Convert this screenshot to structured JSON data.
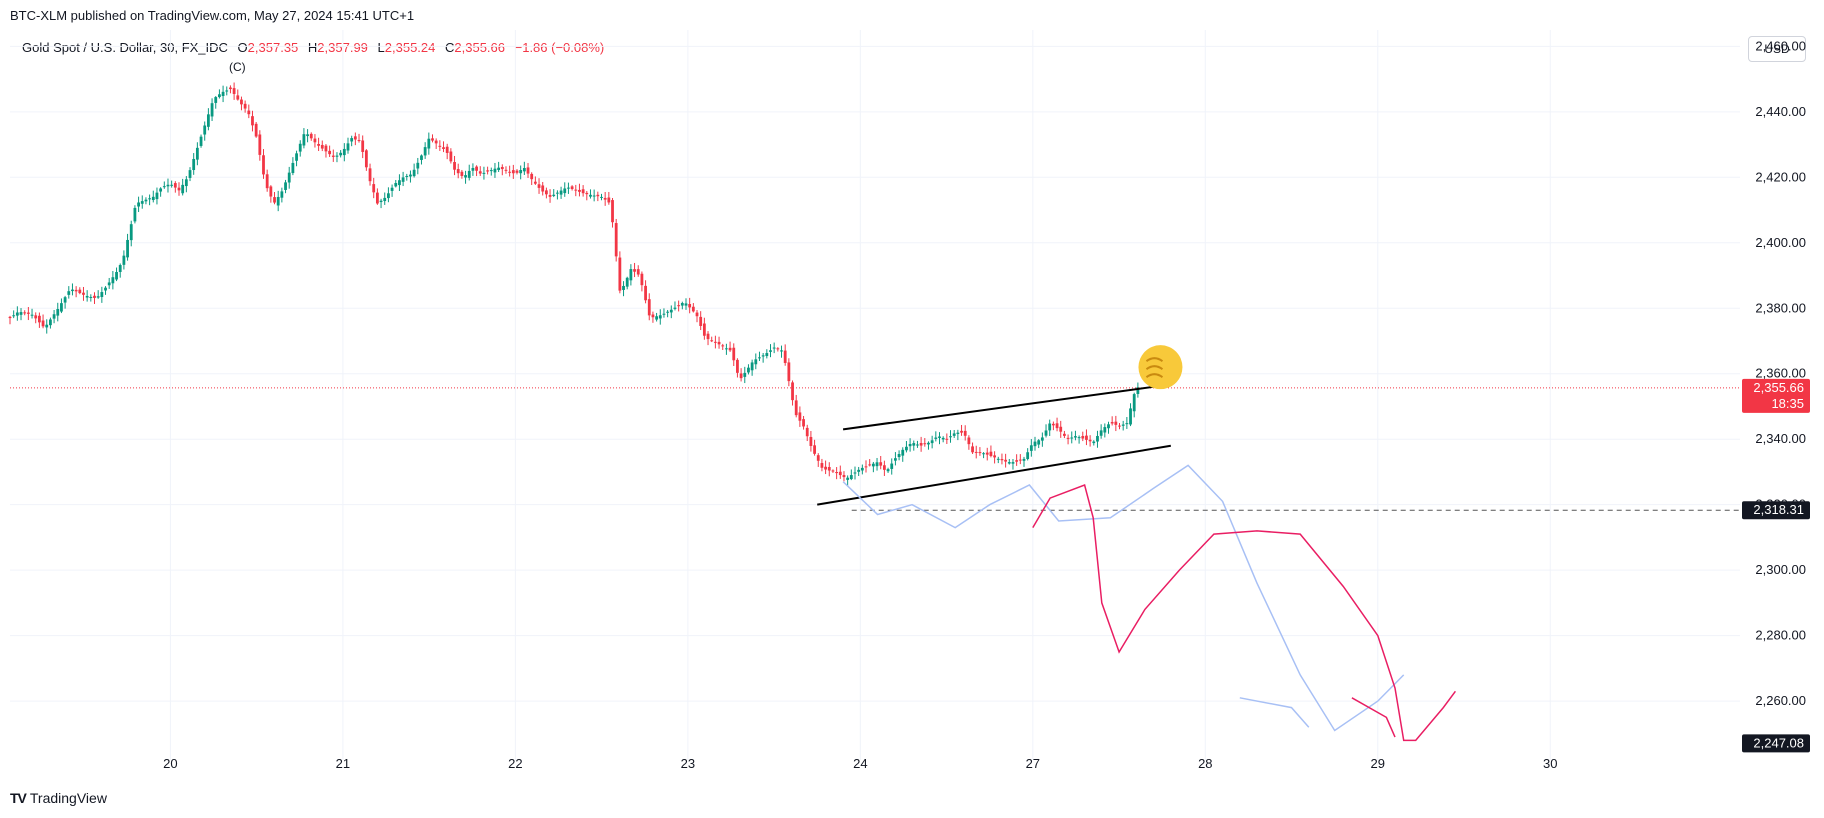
{
  "header": {
    "published": "BTC-XLM published on TradingView.com, May 27, 2024 15:41 UTC+1"
  },
  "legend": {
    "symbol": "Gold Spot / U.S. Dollar, 30, FX_IDC",
    "o_label": "O",
    "o_value": "2,357.35",
    "h_label": "H",
    "h_value": "2,357.99",
    "l_label": "L",
    "l_value": "2,355.24",
    "c_label": "C",
    "c_value": "2,355.66",
    "change": "−1.86 (−0.08%)"
  },
  "wave_label": "(C)",
  "currency_button": "USD",
  "footer": {
    "brand": "TradingView",
    "logo": "TV"
  },
  "colors": {
    "up": "#089981",
    "down": "#f23645",
    "grid": "#f0f3fa",
    "current_price_line": "#f23645",
    "channel": "#000000",
    "projection_blue": "#a8c0f5",
    "projection_pink": "#e91e63"
  },
  "price_tags": {
    "current": "2,355.66",
    "countdown": "18:35",
    "level": "2,318.31",
    "low_target": "2,247.08"
  },
  "icons": {
    "fist": "fist-emoji-icon"
  },
  "chart_data": {
    "type": "candlestick",
    "title": "",
    "y_ticks": [
      2260,
      2280,
      2300,
      2320,
      2340,
      2360,
      2380,
      2400,
      2420,
      2440,
      2460
    ],
    "y_tick_labels": [
      "2,260.00",
      "2,280.00",
      "2,300.00",
      "2,320.00",
      "2,340.00",
      "2,360.00",
      "2,380.00",
      "2,400.00",
      "2,420.00",
      "2,440.00",
      "2,460.00"
    ],
    "ylim": [
      2242.0,
      2465.0
    ],
    "x_ticks": [
      "20",
      "21",
      "22",
      "23",
      "24",
      "27",
      "28",
      "29",
      "30"
    ],
    "x_tick_day": [
      1,
      2,
      3,
      4,
      5,
      6,
      7,
      8,
      9
    ],
    "xlim": [
      0.07,
      10.1
    ],
    "series": [
      {
        "name": "Gold Spot / U.S. Dollar",
        "close_path": [
          [
            0.07,
            2377
          ],
          [
            0.12,
            2379
          ],
          [
            0.2,
            2378
          ],
          [
            0.27,
            2374
          ],
          [
            0.35,
            2380
          ],
          [
            0.42,
            2386
          ],
          [
            0.5,
            2384
          ],
          [
            0.57,
            2383
          ],
          [
            0.62,
            2386
          ],
          [
            0.7,
            2392
          ],
          [
            0.73,
            2396
          ],
          [
            0.77,
            2405
          ],
          [
            0.8,
            2412
          ],
          [
            0.85,
            2413
          ],
          [
            0.9,
            2414
          ],
          [
            0.95,
            2417
          ],
          [
            1.0,
            2418
          ],
          [
            1.05,
            2416
          ],
          [
            1.1,
            2420
          ],
          [
            1.15,
            2428
          ],
          [
            1.2,
            2436
          ],
          [
            1.25,
            2444
          ],
          [
            1.3,
            2446
          ],
          [
            1.35,
            2447
          ],
          [
            1.4,
            2443
          ],
          [
            1.45,
            2440
          ],
          [
            1.5,
            2432
          ],
          [
            1.55,
            2418
          ],
          [
            1.6,
            2412
          ],
          [
            1.65,
            2416
          ],
          [
            1.7,
            2423
          ],
          [
            1.78,
            2434
          ],
          [
            1.85,
            2430
          ],
          [
            1.9,
            2428
          ],
          [
            1.95,
            2426
          ],
          [
            2.0,
            2428
          ],
          [
            2.05,
            2432
          ],
          [
            2.1,
            2431
          ],
          [
            2.15,
            2420
          ],
          [
            2.2,
            2412
          ],
          [
            2.25,
            2414
          ],
          [
            2.3,
            2418
          ],
          [
            2.35,
            2420
          ],
          [
            2.4,
            2421
          ],
          [
            2.45,
            2426
          ],
          [
            2.5,
            2432
          ],
          [
            2.55,
            2430
          ],
          [
            2.6,
            2428
          ],
          [
            2.65,
            2422
          ],
          [
            2.7,
            2420
          ],
          [
            2.75,
            2423
          ],
          [
            2.8,
            2421
          ],
          [
            2.85,
            2422
          ],
          [
            2.9,
            2423
          ],
          [
            2.95,
            2422
          ],
          [
            3.0,
            2421
          ],
          [
            3.05,
            2423
          ],
          [
            3.1,
            2419
          ],
          [
            3.15,
            2416
          ],
          [
            3.2,
            2414
          ],
          [
            3.3,
            2417
          ],
          [
            3.4,
            2415
          ],
          [
            3.5,
            2414
          ],
          [
            3.55,
            2412
          ],
          [
            3.58,
            2399
          ],
          [
            3.6,
            2385
          ],
          [
            3.63,
            2387
          ],
          [
            3.67,
            2392
          ],
          [
            3.72,
            2390
          ],
          [
            3.78,
            2377
          ],
          [
            3.85,
            2378
          ],
          [
            3.92,
            2380
          ],
          [
            3.98,
            2382
          ],
          [
            4.05,
            2378
          ],
          [
            4.1,
            2371
          ],
          [
            4.18,
            2369
          ],
          [
            4.25,
            2367
          ],
          [
            4.3,
            2358
          ],
          [
            4.38,
            2364
          ],
          [
            4.45,
            2366
          ],
          [
            4.5,
            2368
          ],
          [
            4.55,
            2367
          ],
          [
            4.6,
            2354
          ],
          [
            4.62,
            2348
          ],
          [
            4.67,
            2344
          ],
          [
            4.72,
            2337
          ],
          [
            4.78,
            2331
          ],
          [
            4.85,
            2330
          ],
          [
            4.92,
            2328
          ],
          [
            5.0,
            2331
          ],
          [
            5.05,
            2332
          ],
          [
            5.1,
            2333
          ],
          [
            5.15,
            2330
          ],
          [
            5.2,
            2334
          ],
          [
            5.25,
            2337
          ],
          [
            5.3,
            2339
          ],
          [
            5.35,
            2338
          ],
          [
            5.4,
            2339
          ],
          [
            5.45,
            2341
          ],
          [
            5.5,
            2340
          ],
          [
            5.55,
            2342
          ],
          [
            5.6,
            2342
          ],
          [
            5.65,
            2336
          ],
          [
            5.7,
            2336
          ],
          [
            5.75,
            2335
          ],
          [
            5.8,
            2334
          ],
          [
            5.85,
            2333
          ],
          [
            5.9,
            2333
          ],
          [
            5.95,
            2334
          ],
          [
            6.0,
            2339
          ],
          [
            6.05,
            2340
          ],
          [
            6.1,
            2345
          ],
          [
            6.15,
            2343
          ],
          [
            6.2,
            2340
          ],
          [
            6.25,
            2341
          ],
          [
            6.3,
            2340
          ],
          [
            6.35,
            2339
          ],
          [
            6.4,
            2343
          ],
          [
            6.45,
            2345
          ],
          [
            6.5,
            2344
          ],
          [
            6.55,
            2345
          ],
          [
            6.58,
            2353
          ],
          [
            6.61,
            2356
          ]
        ]
      },
      {
        "name": "",
        "type": "line",
        "points": [
          [
            5.65,
            2347
          ],
          [
            5.9,
            2345
          ],
          [
            6.1,
            2347
          ],
          [
            6.3,
            2351
          ],
          [
            6.56,
            2356
          ]
        ]
      }
    ],
    "annotations": {
      "channel_upper": [
        [
          4.9,
          2343
        ],
        [
          6.7,
          2356
        ]
      ],
      "channel_lower": [
        [
          4.75,
          2320
        ],
        [
          6.8,
          2338
        ]
      ],
      "level_line": 2318.31,
      "current_price": 2355.66,
      "projection_blue": [
        [
          4.9,
          2327
        ],
        [
          5.1,
          2317
        ],
        [
          5.3,
          2320
        ],
        [
          5.55,
          2313
        ],
        [
          5.75,
          2320
        ],
        [
          5.98,
          2326
        ],
        [
          6.15,
          2315
        ],
        [
          6.45,
          2316
        ],
        [
          6.7,
          2325
        ],
        [
          6.9,
          2332
        ],
        [
          7.1,
          2321
        ],
        [
          7.3,
          2296
        ],
        [
          7.55,
          2268
        ],
        [
          7.75,
          2251
        ],
        [
          8.0,
          2260
        ],
        [
          8.15,
          2268
        ]
      ],
      "projection_blue_tail": [
        [
          7.2,
          2261
        ],
        [
          7.5,
          2258
        ],
        [
          7.6,
          2252
        ]
      ],
      "projection_pink": [
        [
          6.0,
          2313
        ],
        [
          6.1,
          2322
        ],
        [
          6.3,
          2326
        ],
        [
          6.35,
          2316
        ],
        [
          6.4,
          2290
        ],
        [
          6.5,
          2275
        ],
        [
          6.65,
          2288
        ],
        [
          6.85,
          2300
        ],
        [
          7.05,
          2311
        ],
        [
          7.3,
          2312
        ],
        [
          7.55,
          2311
        ],
        [
          7.8,
          2295
        ],
        [
          8.0,
          2280
        ],
        [
          8.1,
          2264
        ],
        [
          8.15,
          2248
        ],
        [
          8.22,
          2248
        ],
        [
          8.38,
          2258
        ],
        [
          8.45,
          2263
        ]
      ],
      "projection_pink_small": [
        [
          7.85,
          2261
        ],
        [
          8.05,
          2255
        ],
        [
          8.1,
          2249
        ]
      ]
    },
    "grid": true
  }
}
